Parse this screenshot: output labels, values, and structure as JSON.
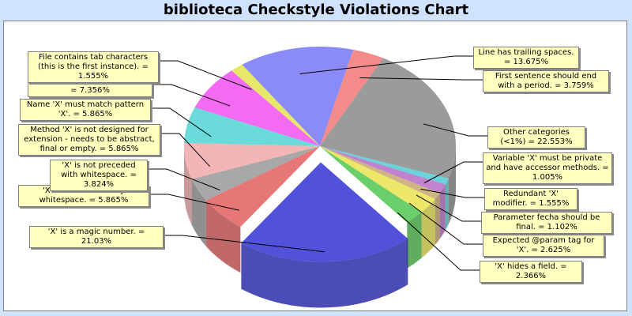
{
  "chart_data": {
    "type": "pie",
    "title": "biblioteca Checkstyle Violations Chart",
    "slices": [
      {
        "label": "Line has trailing spaces. = 13.675%",
        "value": 13.675,
        "color": "#6a6af5"
      },
      {
        "label": "First sentence should end with a period. = 3.759%",
        "value": 3.759,
        "color": "#f06a6a"
      },
      {
        "label": "Other categories (<1%) = 22.553%",
        "value": 22.553,
        "color": "#7f7f7f"
      },
      {
        "label": "Variable 'X' must be private and have accessor methods. = 1.005%",
        "value": 1.005,
        "color": "#40c8d0"
      },
      {
        "label": "Redundant 'X' modifier. = 1.555%",
        "value": 1.555,
        "color": "#b060c0"
      },
      {
        "label": "Parameter fecha should be final. = 1.102%",
        "value": 1.102,
        "color": "#c0a060"
      },
      {
        "label": "Expected @param tag for 'X'. = 2.625%",
        "value": 2.625,
        "color": "#e8e040"
      },
      {
        "label": "'X' hides a field. = 2.366%",
        "value": 2.366,
        "color": "#40c040"
      },
      {
        "label": "'X' is a magic number. = 21.03%",
        "value": 21.03,
        "color": "#2020d0",
        "explode": true
      },
      {
        "label": "'X' is not followed by whitespace. = 5.865%",
        "value": 5.865,
        "color": "#e05050"
      },
      {
        "label": "'X' is not preceded with whitespace. = 3.824%",
        "value": 3.824,
        "color": "#909090"
      },
      {
        "label": "Method 'X' is not designed for extension - needs to be abstract, final or empty. = 5.865%",
        "value": 5.865,
        "color": "#f0a0a0"
      },
      {
        "label": "Name 'X' must match pattern 'X'. = 5.865%",
        "value": 5.865,
        "color": "#40d0d0"
      },
      {
        "label": "Missing a Javadoc comment. = 7.356%",
        "value": 7.356,
        "color": "#f040f0"
      },
      {
        "label": "File contains tab characters (this is the first instance). = 1.555%",
        "value": 1.555,
        "color": "#e0e040"
      }
    ]
  }
}
